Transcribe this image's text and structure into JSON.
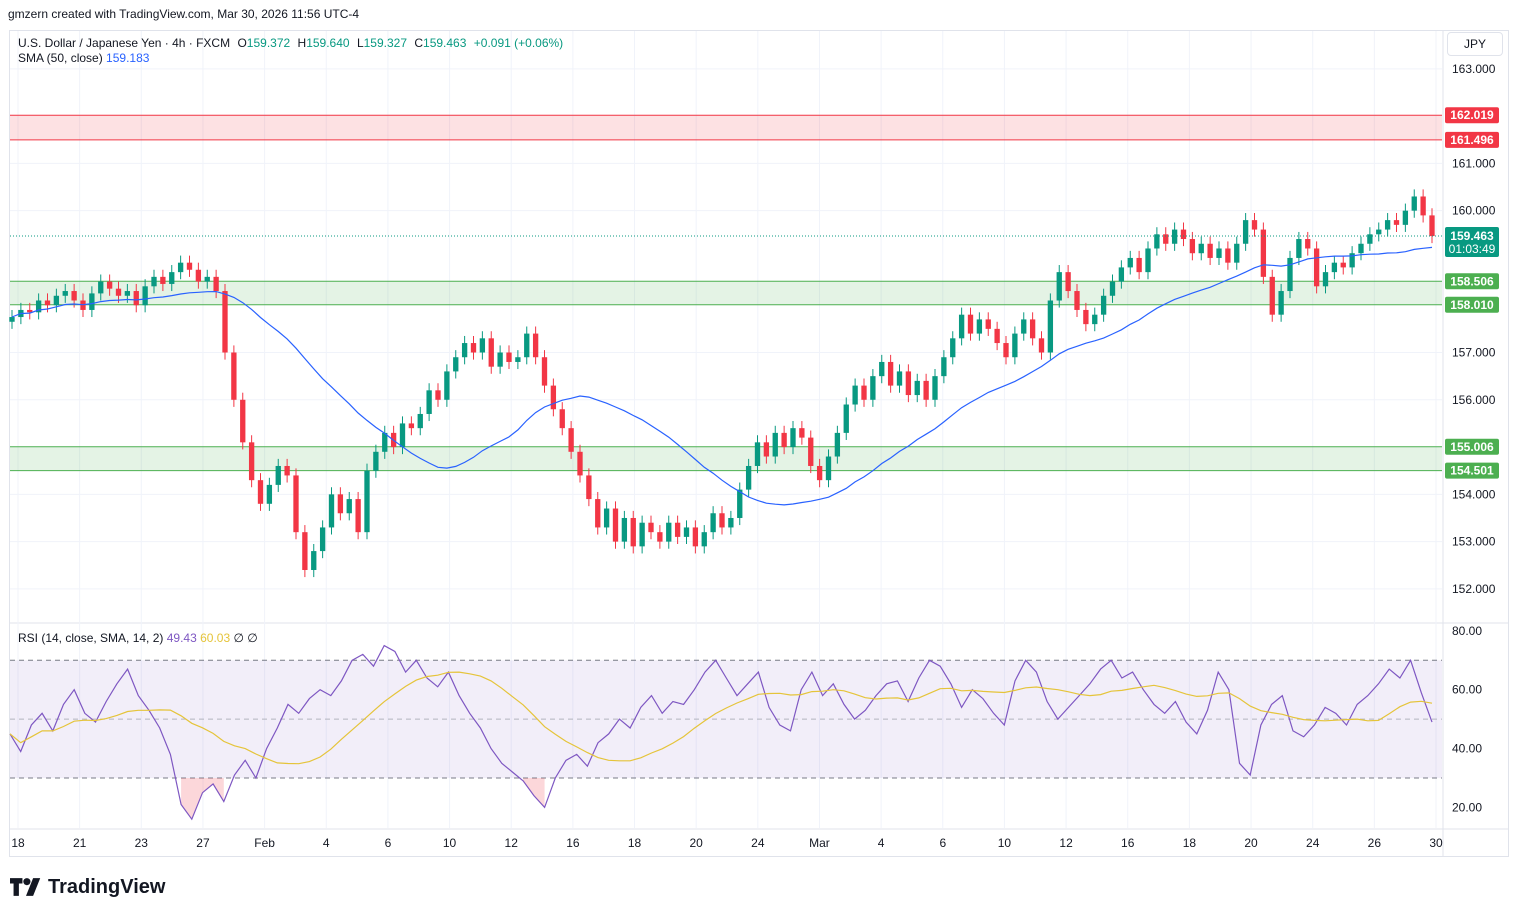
{
  "header": {
    "creator_line": "gmzern created with TradingView.com, Mar 30, 2026 11:56 UTC-4"
  },
  "legend": {
    "symbol": "U.S. Dollar / Japanese Yen · 4h · FXCM",
    "open_label": "O",
    "open": "159.372",
    "high_label": "H",
    "high": "159.640",
    "low_label": "L",
    "low": "159.327",
    "close_label": "C",
    "close": "159.463",
    "change": "+0.091 (+0.06%)",
    "sma_label": "SMA (50, close)",
    "sma_value": "159.183",
    "rsi_label": "RSI (14, close, SMA, 14, 2)",
    "rsi_value": "49.43",
    "rsi_ma_value": "60.03",
    "rsi_extra1": "∅",
    "rsi_extra2": "∅"
  },
  "currency_button": "JPY",
  "brand": {
    "name": "TradingView"
  },
  "colors": {
    "up": "#089981",
    "down": "#f23645",
    "sma": "#2962ff",
    "rsi": "#7e57c2",
    "rsi_ma": "#e5c43a",
    "resistance_zone": "#f23645",
    "support_zone": "#4caf50"
  },
  "chart_data": [
    {
      "type": "candlestick",
      "symbol": "USDJPY",
      "timeframe": "4h",
      "y_ticks": [
        "163.000",
        "161.000",
        "160.000",
        "157.000",
        "156.000",
        "154.000",
        "153.000",
        "152.000"
      ],
      "ylim": [
        151.3,
        163.8
      ],
      "x_ticks": [
        "18",
        "21",
        "23",
        "27",
        "Feb",
        "4",
        "6",
        "10",
        "12",
        "16",
        "18",
        "20",
        "24",
        "Mar",
        "4",
        "6",
        "10",
        "12",
        "16",
        "18",
        "20",
        "24",
        "26",
        "30"
      ],
      "zones": [
        {
          "kind": "resistance",
          "top": 162.019,
          "bottom": 161.496,
          "top_label": "162.019",
          "bottom_label": "161.496"
        },
        {
          "kind": "support",
          "top": 158.506,
          "bottom": 158.01,
          "top_label": "158.506",
          "bottom_label": "158.010"
        },
        {
          "kind": "support",
          "top": 155.006,
          "bottom": 154.501,
          "top_label": "155.006",
          "bottom_label": "154.501"
        }
      ],
      "last_price": {
        "value": 159.463,
        "label": "159.463",
        "countdown": "01:03:49"
      },
      "closes": [
        157.75,
        157.9,
        157.85,
        158.1,
        158.0,
        158.2,
        158.3,
        158.1,
        157.9,
        158.25,
        158.5,
        158.35,
        158.2,
        158.3,
        158.0,
        158.4,
        158.6,
        158.45,
        158.7,
        158.9,
        158.75,
        158.5,
        158.6,
        158.3,
        157.0,
        156.0,
        155.1,
        154.3,
        153.8,
        154.2,
        154.6,
        154.4,
        153.2,
        152.4,
        152.8,
        153.3,
        154.0,
        153.6,
        153.9,
        153.2,
        154.5,
        154.9,
        155.3,
        155.0,
        155.5,
        155.4,
        155.7,
        156.2,
        156.0,
        156.6,
        156.9,
        157.2,
        157.0,
        157.3,
        156.7,
        157.0,
        156.8,
        156.9,
        157.4,
        156.9,
        156.3,
        155.8,
        155.4,
        154.9,
        154.4,
        153.9,
        153.3,
        153.7,
        153.0,
        153.5,
        152.9,
        153.4,
        153.2,
        153.0,
        153.4,
        153.1,
        153.3,
        152.9,
        153.2,
        153.6,
        153.3,
        153.5,
        154.1,
        154.6,
        155.1,
        154.8,
        155.3,
        155.0,
        155.4,
        155.2,
        154.6,
        154.3,
        154.8,
        155.3,
        155.9,
        156.3,
        156.0,
        156.5,
        156.8,
        156.3,
        156.6,
        156.1,
        156.4,
        156.0,
        156.5,
        156.9,
        157.3,
        157.8,
        157.4,
        157.7,
        157.5,
        157.2,
        156.9,
        157.4,
        157.7,
        157.3,
        157.0,
        158.1,
        158.7,
        158.3,
        157.9,
        157.6,
        157.8,
        158.2,
        158.5,
        158.8,
        159.0,
        158.7,
        159.2,
        159.5,
        159.3,
        159.6,
        159.4,
        159.1,
        159.3,
        159.0,
        159.2,
        158.9,
        159.3,
        159.8,
        159.6,
        158.6,
        157.8,
        158.3,
        159.0,
        159.4,
        159.2,
        158.4,
        158.7,
        158.9,
        158.8,
        159.1,
        159.3,
        159.5,
        159.6,
        159.8,
        159.7,
        160.0,
        160.3,
        159.9,
        159.463
      ]
    },
    {
      "type": "line",
      "name": "RSI",
      "y_ticks": [
        "80.00",
        "60.00",
        "40.00",
        "20.00"
      ],
      "ylim": [
        13,
        82
      ],
      "bands": {
        "upper": 70,
        "middle": 50,
        "lower": 30
      },
      "values": [
        45,
        39,
        48,
        52,
        46,
        55,
        60,
        52,
        49,
        56,
        62,
        67,
        58,
        53,
        47,
        38,
        21,
        16,
        25,
        28,
        22,
        31,
        36,
        30,
        40,
        47,
        55,
        52,
        57,
        60,
        58,
        63,
        70,
        72,
        68,
        75,
        73,
        66,
        70,
        64,
        61,
        66,
        58,
        52,
        47,
        40,
        35,
        32,
        29,
        24,
        20,
        30,
        36,
        38,
        34,
        42,
        45,
        50,
        47,
        54,
        58,
        52,
        56,
        55,
        60,
        66,
        70,
        64,
        58,
        62,
        66,
        54,
        48,
        46,
        60,
        66,
        58,
        62,
        55,
        50,
        53,
        58,
        62,
        63,
        56,
        64,
        70,
        68,
        62,
        54,
        60,
        57,
        52,
        48,
        63,
        70,
        66,
        56,
        50,
        54,
        58,
        62,
        67,
        70,
        64,
        66,
        60,
        55,
        52,
        56,
        49,
        45,
        53,
        66,
        60,
        35,
        31,
        48,
        55,
        58,
        46,
        44,
        48,
        54,
        52,
        48,
        55,
        58,
        62,
        67,
        64,
        70,
        59,
        49
      ]
    }
  ]
}
